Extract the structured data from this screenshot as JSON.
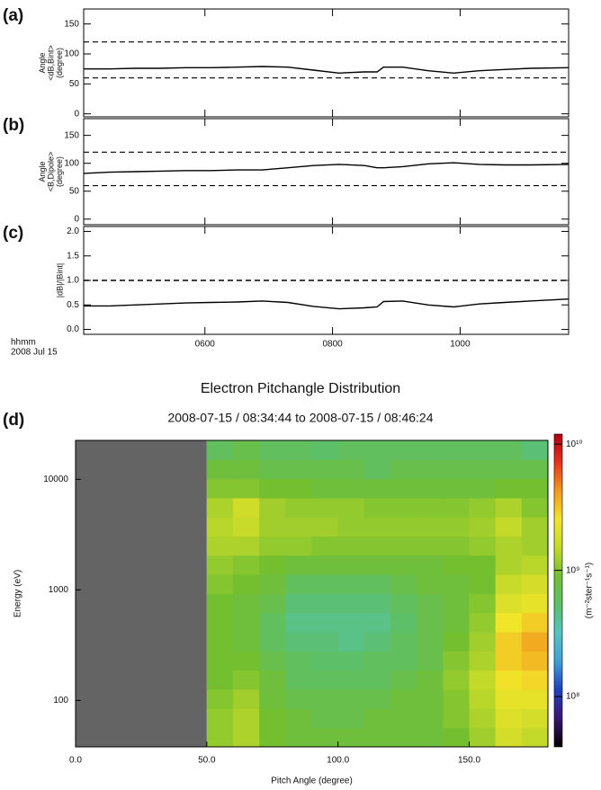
{
  "chart_data": [
    {
      "type": "line",
      "panel_label": "(a)",
      "ylabel": [
        "Angle",
        "<dB,Bint>",
        "(degree)"
      ],
      "x": [
        4.1,
        4.5,
        4.9,
        5.3,
        5.7,
        6.1,
        6.5,
        6.9,
        7.3,
        7.7,
        8.1,
        8.5,
        8.7,
        8.8,
        9.1,
        9.5,
        9.9,
        10.3,
        10.7,
        11.1,
        11.7
      ],
      "values": [
        75,
        75,
        76,
        76,
        77,
        77,
        78,
        79,
        78,
        73,
        68,
        70,
        70,
        78,
        78,
        72,
        68,
        72,
        74,
        76,
        77
      ],
      "color": "#000000",
      "xlim": [
        4.1,
        11.7
      ],
      "ylim": [
        -5,
        175
      ],
      "yticks": [
        0,
        50,
        100,
        150
      ],
      "reference_lines": [
        60,
        120
      ]
    },
    {
      "type": "line",
      "panel_label": "(b)",
      "ylabel": [
        "Angle",
        "<B,Dipole>",
        "(degree)"
      ],
      "x": [
        4.1,
        4.5,
        4.9,
        5.3,
        5.7,
        6.1,
        6.5,
        6.9,
        7.3,
        7.7,
        8.1,
        8.5,
        8.7,
        8.8,
        9.1,
        9.5,
        9.9,
        10.3,
        10.7,
        11.1,
        11.7
      ],
      "values": [
        82,
        84,
        85,
        86,
        87,
        87,
        88,
        88,
        92,
        96,
        98,
        96,
        92,
        92,
        94,
        99,
        101,
        98,
        97,
        97,
        98
      ],
      "color": "#000000",
      "xlim": [
        4.1,
        11.7
      ],
      "ylim": [
        -10,
        180
      ],
      "yticks": [
        0,
        50,
        100,
        150
      ],
      "reference_lines": [
        60,
        120
      ]
    },
    {
      "type": "line",
      "panel_label": "(c)",
      "ylabel": [
        "|dB|/|Bint|"
      ],
      "x": [
        4.1,
        4.5,
        4.9,
        5.3,
        5.7,
        6.1,
        6.5,
        6.9,
        7.3,
        7.7,
        8.1,
        8.5,
        8.7,
        8.8,
        9.1,
        9.5,
        9.9,
        10.3,
        10.7,
        11.1,
        11.7
      ],
      "values": [
        0.48,
        0.48,
        0.5,
        0.52,
        0.54,
        0.55,
        0.56,
        0.58,
        0.55,
        0.47,
        0.42,
        0.44,
        0.46,
        0.57,
        0.58,
        0.5,
        0.46,
        0.52,
        0.55,
        0.58,
        0.62
      ],
      "color": "#000000",
      "xlim": [
        4.1,
        11.7
      ],
      "ylim": [
        -0.1,
        2.1
      ],
      "yticks": [
        {
          "value": 0,
          "label": "0.0"
        },
        0.5,
        {
          "value": 1,
          "label": "1.0"
        },
        1.5,
        {
          "value": 2,
          "label": "2.0"
        }
      ],
      "reference_lines": [
        1
      ],
      "xticks": [
        {
          "value": 6,
          "label": "0600"
        },
        {
          "value": 8,
          "label": "0800"
        },
        {
          "value": 10,
          "label": "1000"
        }
      ],
      "x_label_lines": [
        "hhmm",
        "2008 Jul 15"
      ]
    },
    {
      "type": "heatmap",
      "panel_label": "(d)",
      "title": "Electron Pitchangle Distribution",
      "subtitle": "2008-07-15 / 08:34:44 to 2008-07-15 / 08:46:24",
      "xlabel": "Pitch Angle (degree)",
      "ylabel": "Energy (eV)",
      "xlim": [
        0,
        180
      ],
      "xticks": [
        {
          "value": 0,
          "label": "0.0"
        },
        {
          "value": 50,
          "label": "50.0"
        },
        {
          "value": 100,
          "label": "100.0"
        },
        {
          "value": 150,
          "label": "150.0"
        }
      ],
      "ylim": [
        38,
        22500
      ],
      "yticks": [
        100,
        1000,
        10000
      ],
      "log_y": true,
      "x_bins": [
        50,
        60,
        70,
        80,
        90,
        100,
        110,
        120,
        130,
        140,
        150,
        160,
        170,
        180
      ],
      "y_bins": [
        38,
        56.7,
        84.5,
        126,
        188,
        280,
        417,
        622,
        927,
        1381,
        2058,
        3066,
        4568,
        6806,
        10140,
        15110,
        22500
      ],
      "values": [
        [
          1100000000.0,
          1300000000.0,
          900000000.0,
          800000000.0,
          800000000.0,
          800000000.0,
          800000000.0,
          800000000.0,
          800000000.0,
          900000000.0,
          1200000000.0,
          1800000000.0,
          1500000000.0
        ],
        [
          1100000000.0,
          1300000000.0,
          900000000.0,
          800000000.0,
          700000000.0,
          700000000.0,
          800000000.0,
          800000000.0,
          800000000.0,
          1000000000.0,
          1300000000.0,
          2000000000.0,
          1800000000.0
        ],
        [
          1000000000.0,
          1200000000.0,
          800000000.0,
          700000000.0,
          700000000.0,
          700000000.0,
          700000000.0,
          800000000.0,
          800000000.0,
          1000000000.0,
          1400000000.0,
          2200000000.0,
          2200000000.0
        ],
        [
          900000000.0,
          1000000000.0,
          800000000.0,
          600000000.0,
          600000000.0,
          600000000.0,
          600000000.0,
          700000000.0,
          800000000.0,
          1100000000.0,
          1500000000.0,
          2600000000.0,
          2800000000.0
        ],
        [
          900000000.0,
          900000000.0,
          700000000.0,
          600000000.0,
          550000000.0,
          550000000.0,
          600000000.0,
          600000000.0,
          700000000.0,
          1000000000.0,
          1300000000.0,
          3000000000.0,
          3400000000.0
        ],
        [
          900000000.0,
          800000000.0,
          600000000.0,
          500000000.0,
          500000000.0,
          450000000.0,
          500000000.0,
          600000000.0,
          700000000.0,
          900000000.0,
          1200000000.0,
          3000000000.0,
          3800000000.0
        ],
        [
          900000000.0,
          800000000.0,
          600000000.0,
          450000000.0,
          450000000.0,
          450000000.0,
          450000000.0,
          550000000.0,
          700000000.0,
          800000000.0,
          1100000000.0,
          2500000000.0,
          3000000000.0
        ],
        [
          900000000.0,
          800000000.0,
          700000000.0,
          500000000.0,
          500000000.0,
          500000000.0,
          500000000.0,
          600000000.0,
          700000000.0,
          800000000.0,
          1000000000.0,
          2000000000.0,
          2200000000.0
        ],
        [
          1000000000.0,
          900000000.0,
          800000000.0,
          600000000.0,
          600000000.0,
          600000000.0,
          600000000.0,
          700000000.0,
          800000000.0,
          800000000.0,
          900000000.0,
          1600000000.0,
          1800000000.0
        ],
        [
          1100000000.0,
          1000000000.0,
          900000000.0,
          800000000.0,
          800000000.0,
          800000000.0,
          800000000.0,
          800000000.0,
          800000000.0,
          900000000.0,
          900000000.0,
          1300000000.0,
          1400000000.0
        ],
        [
          1300000000.0,
          1300000000.0,
          1100000000.0,
          1100000000.0,
          1000000000.0,
          1000000000.0,
          1000000000.0,
          1000000000.0,
          1000000000.0,
          1000000000.0,
          1100000000.0,
          1300000000.0,
          1200000000.0
        ],
        [
          1400000000.0,
          1600000000.0,
          1200000000.0,
          1200000000.0,
          1200000000.0,
          1100000000.0,
          1100000000.0,
          1100000000.0,
          1100000000.0,
          1100000000.0,
          1200000000.0,
          1500000000.0,
          1200000000.0
        ],
        [
          1300000000.0,
          1700000000.0,
          1200000000.0,
          1100000000.0,
          1100000000.0,
          1100000000.0,
          1000000000.0,
          1000000000.0,
          1000000000.0,
          1000000000.0,
          1100000000.0,
          1300000000.0,
          1000000000.0
        ],
        [
          1000000000.0,
          1000000000.0,
          900000000.0,
          900000000.0,
          800000000.0,
          800000000.0,
          800000000.0,
          800000000.0,
          800000000.0,
          800000000.0,
          800000000.0,
          900000000.0,
          900000000.0
        ],
        [
          800000000.0,
          800000000.0,
          700000000.0,
          700000000.0,
          700000000.0,
          700000000.0,
          600000000.0,
          700000000.0,
          700000000.0,
          700000000.0,
          700000000.0,
          700000000.0,
          700000000.0
        ],
        [
          600000000.0,
          700000000.0,
          600000000.0,
          600000000.0,
          550000000.0,
          600000000.0,
          600000000.0,
          600000000.0,
          600000000.0,
          600000000.0,
          600000000.0,
          600000000.0,
          500000000.0
        ]
      ],
      "colormap": [
        "#000000",
        "#3b1670",
        "#1f3fbf",
        "#3f9fd8",
        "#56c4c0",
        "#5cbf6a",
        "#74bf30",
        "#c4da2a",
        "#f2e52a",
        "#f29a1e",
        "#e6341e",
        "#b00010"
      ],
      "no_data_color": "#646464",
      "colorbar": {
        "label": "(m⁻²ster⁻¹s⁻¹)",
        "clim": [
          40000000.0,
          12000000000.0
        ],
        "log": true,
        "ticks": [
          {
            "value": 100000000.0,
            "label": "10⁸"
          },
          {
            "value": 1000000000.0,
            "label": "10⁹"
          },
          {
            "value": 10000000000.0,
            "label": "10¹⁰"
          }
        ]
      }
    }
  ]
}
